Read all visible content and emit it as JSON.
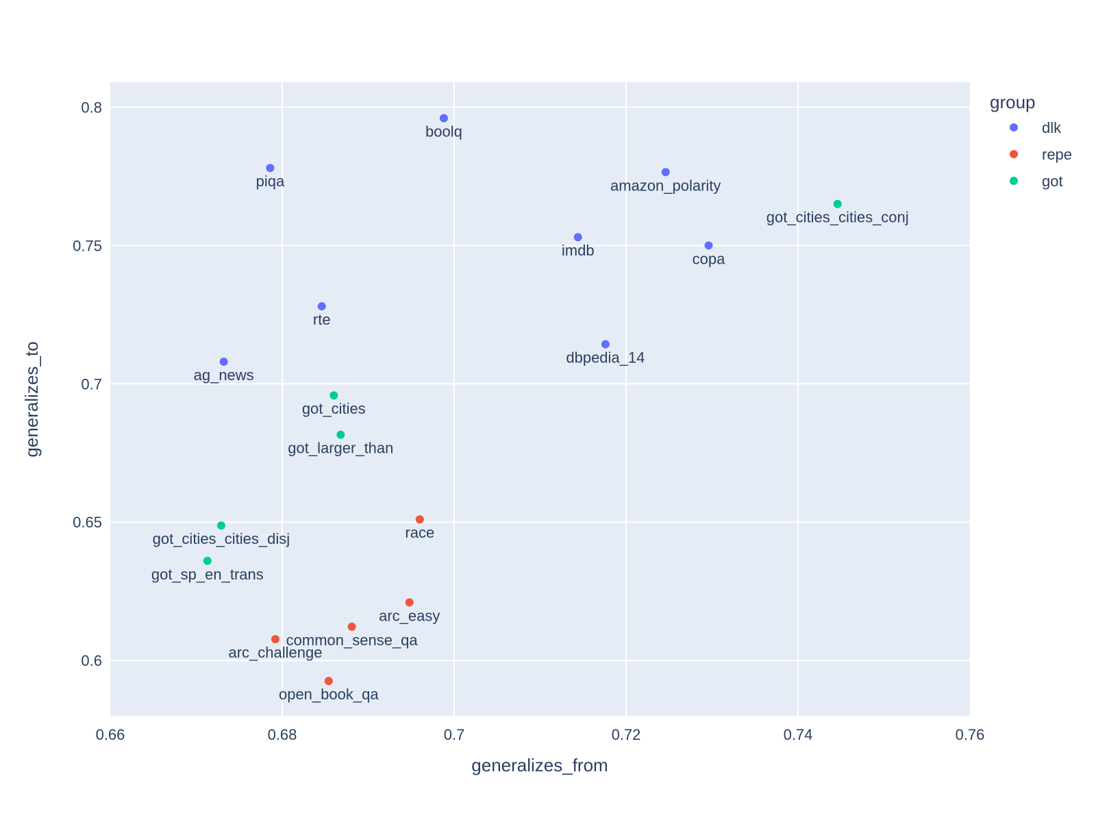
{
  "chart_data": {
    "type": "scatter",
    "xlabel": "generalizes_from",
    "ylabel": "generalizes_to",
    "xlim": [
      0.66,
      0.76
    ],
    "ylim": [
      0.58,
      0.809
    ],
    "x_ticks": [
      0.66,
      0.68,
      0.7,
      0.72,
      0.74,
      0.76
    ],
    "x_tick_labels": [
      "0.66",
      "0.68",
      "0.7",
      "0.72",
      "0.74",
      "0.76"
    ],
    "y_ticks": [
      0.6,
      0.65,
      0.7,
      0.75,
      0.8
    ],
    "y_tick_labels": [
      "0.6",
      "0.65",
      "0.7",
      "0.75",
      "0.8"
    ],
    "grid": true,
    "legend": {
      "title": "group",
      "placement": "right"
    },
    "series": [
      {
        "name": "dlk",
        "color": "#636efa",
        "points": [
          {
            "label": "boolq",
            "x": 0.6988,
            "y": 0.796
          },
          {
            "label": "piqa",
            "x": 0.6786,
            "y": 0.778
          },
          {
            "label": "amazon_polarity",
            "x": 0.7246,
            "y": 0.7765
          },
          {
            "label": "imdb",
            "x": 0.7144,
            "y": 0.753
          },
          {
            "label": "copa",
            "x": 0.7296,
            "y": 0.75
          },
          {
            "label": "rte",
            "x": 0.6846,
            "y": 0.728
          },
          {
            "label": "dbpedia_14",
            "x": 0.7176,
            "y": 0.7143
          },
          {
            "label": "ag_news",
            "x": 0.6732,
            "y": 0.708
          }
        ]
      },
      {
        "name": "repe",
        "color": "#ef553b",
        "points": [
          {
            "label": "race",
            "x": 0.696,
            "y": 0.651
          },
          {
            "label": "arc_easy",
            "x": 0.6948,
            "y": 0.621
          },
          {
            "label": "common_sense_qa",
            "x": 0.6881,
            "y": 0.6122
          },
          {
            "label": "arc_challenge",
            "x": 0.6792,
            "y": 0.6077
          },
          {
            "label": "open_book_qa",
            "x": 0.6854,
            "y": 0.5926
          }
        ]
      },
      {
        "name": "got",
        "color": "#00cc96",
        "points": [
          {
            "label": "got_cities_cities_conj",
            "x": 0.7446,
            "y": 0.765
          },
          {
            "label": "got_cities",
            "x": 0.686,
            "y": 0.6958
          },
          {
            "label": "got_larger_than",
            "x": 0.6868,
            "y": 0.6816
          },
          {
            "label": "got_cities_cities_disj",
            "x": 0.6729,
            "y": 0.6488
          },
          {
            "label": "got_sp_en_trans",
            "x": 0.6713,
            "y": 0.636
          }
        ]
      }
    ]
  }
}
